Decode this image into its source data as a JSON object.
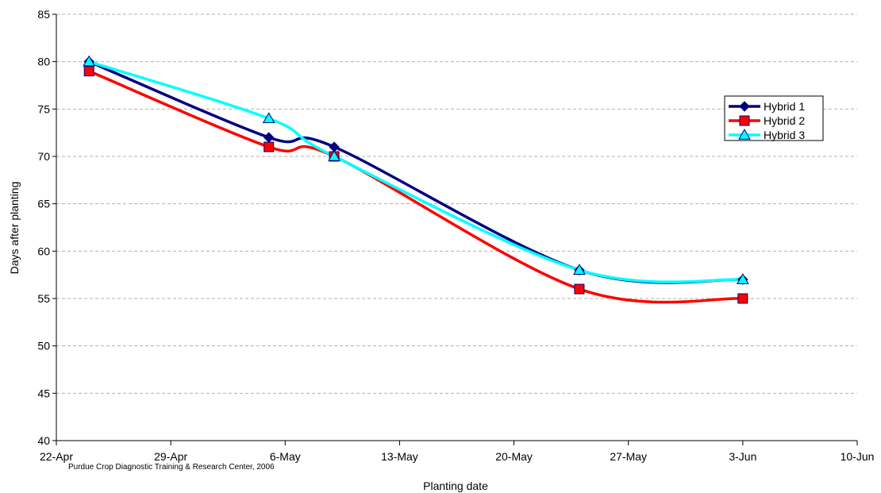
{
  "chart_data": {
    "type": "line",
    "title": "",
    "xlabel": "Planting date",
    "ylabel": "Days after planting",
    "ylim": [
      40,
      85
    ],
    "yticks": [
      40,
      45,
      50,
      55,
      60,
      65,
      70,
      75,
      80,
      85
    ],
    "xlim": [
      "2006-04-22",
      "2006-06-10"
    ],
    "xticks": [
      {
        "date": "2006-04-22",
        "label": "22-Apr"
      },
      {
        "date": "2006-04-29",
        "label": "29-Apr"
      },
      {
        "date": "2006-05-06",
        "label": "6-May"
      },
      {
        "date": "2006-05-13",
        "label": "13-May"
      },
      {
        "date": "2006-05-20",
        "label": "20-May"
      },
      {
        "date": "2006-05-27",
        "label": "27-May"
      },
      {
        "date": "2006-06-03",
        "label": "3-Jun"
      },
      {
        "date": "2006-06-10",
        "label": "10-Jun"
      }
    ],
    "grid": "horizontal dashed",
    "legend_position": "top-right",
    "annotation": "Purdue Crop Diagnostic Training & Research Center, 2006",
    "series": [
      {
        "name": "Hybrid 1",
        "color": "#000080",
        "marker": "diamond",
        "x": [
          "2006-04-24",
          "2006-05-05",
          "2006-05-09",
          "2006-05-24",
          "2006-06-03"
        ],
        "values": [
          80,
          72,
          71,
          58,
          57
        ]
      },
      {
        "name": "Hybrid 2",
        "color": "#ff0000",
        "marker": "square",
        "x": [
          "2006-04-24",
          "2006-05-05",
          "2006-05-09",
          "2006-05-24",
          "2006-06-03"
        ],
        "values": [
          79,
          71,
          70,
          56,
          55
        ]
      },
      {
        "name": "Hybrid 3",
        "color": "#00ffff",
        "marker": "triangle",
        "x": [
          "2006-04-24",
          "2006-05-05",
          "2006-05-09",
          "2006-05-24",
          "2006-06-03"
        ],
        "values": [
          80,
          74,
          70,
          58,
          57
        ]
      }
    ]
  }
}
